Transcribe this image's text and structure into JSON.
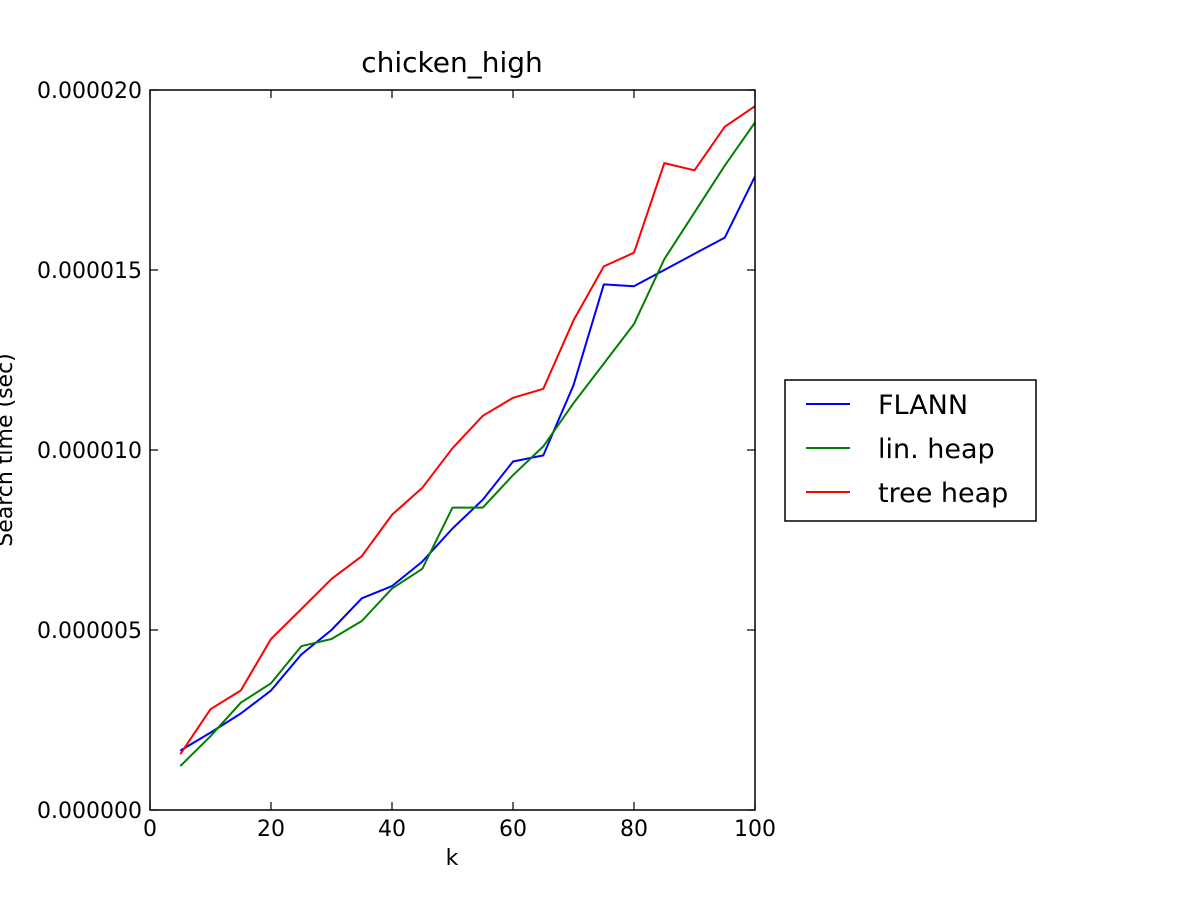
{
  "chart_data": {
    "type": "line",
    "title": "chicken_high",
    "xlabel": "k",
    "ylabel": "Search time (sec)",
    "xlim": [
      0,
      100
    ],
    "ylim": [
      0,
      2e-05
    ],
    "xticks": [
      0,
      20,
      40,
      60,
      80,
      100
    ],
    "xtick_labels": [
      "0",
      "20",
      "40",
      "60",
      "80",
      "100"
    ],
    "yticks": [
      0,
      5e-06,
      1e-05,
      1.5e-05,
      2e-05
    ],
    "ytick_labels": [
      "0.000000",
      "0.000005",
      "0.000010",
      "0.000015",
      "0.000020"
    ],
    "grid": false,
    "legend_position": "outside-right",
    "x": [
      5,
      10,
      15,
      20,
      25,
      30,
      35,
      40,
      45,
      50,
      55,
      60,
      65,
      70,
      75,
      80,
      85,
      90,
      95,
      100
    ],
    "series": [
      {
        "name": "FLANN",
        "color": "#0000ff",
        "values": [
          1.65e-06,
          2.15e-06,
          2.68e-06,
          3.32e-06,
          4.32e-06,
          5e-06,
          5.88e-06,
          6.22e-06,
          6.9e-06,
          7.82e-06,
          8.62e-06,
          9.68e-06,
          9.85e-06,
          1.18e-05,
          1.46e-05,
          1.455e-05,
          1.5e-05,
          1.545e-05,
          1.59e-05,
          1.76e-05
        ]
      },
      {
        "name": "lin. heap",
        "color": "#008000",
        "values": [
          1.22e-06,
          2.05e-06,
          2.98e-06,
          3.52e-06,
          4.55e-06,
          4.75e-06,
          5.25e-06,
          6.15e-06,
          6.7e-06,
          8.4e-06,
          8.4e-06,
          9.3e-06,
          1.01e-05,
          1.13e-05,
          1.24e-05,
          1.35e-05,
          1.53e-05,
          1.66e-05,
          1.79e-05,
          1.91e-05
        ]
      },
      {
        "name": "tree heap",
        "color": "#ff0000",
        "values": [
          1.55e-06,
          2.8e-06,
          3.32e-06,
          4.75e-06,
          5.58e-06,
          6.42e-06,
          7.05e-06,
          8.2e-06,
          8.95e-06,
          1.005e-05,
          1.095e-05,
          1.145e-05,
          1.17e-05,
          1.36e-05,
          1.51e-05,
          1.548e-05,
          1.797e-05,
          1.777e-05,
          1.898e-05,
          1.955e-05
        ]
      }
    ]
  }
}
